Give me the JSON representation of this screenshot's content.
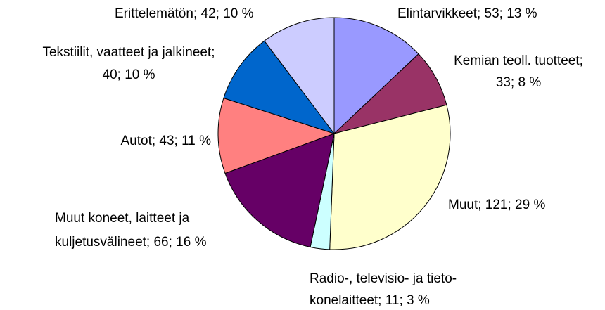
{
  "chart_data": {
    "type": "pie",
    "values": [
      53,
      33,
      121,
      11,
      66,
      43,
      40,
      42
    ],
    "value_labels": [
      [
        "Elintarvikkeet; 53; 13 %"
      ],
      [
        "Kemian teoll. tuotteet;",
        "33; 8 %"
      ],
      [
        "Muut; 121; 29 %"
      ],
      [
        "Radio-, televisio- ja tieto-",
        "konelaitteet; 11; 3 %"
      ],
      [
        "Muut koneet, laitteet ja",
        "kuljetusvälineet; 66; 16 %"
      ],
      [
        "Autot; 43; 11 %"
      ],
      [
        "Tekstiilit, vaatteet ja jalkineet;",
        "40; 10 %"
      ],
      [
        "Erittelemätön; 42; 10 %"
      ]
    ],
    "colors": [
      "#9999ff",
      "#993366",
      "#ffffcc",
      "#ccffff",
      "#660066",
      "#ff8080",
      "#0066cc",
      "#ccccff"
    ]
  }
}
